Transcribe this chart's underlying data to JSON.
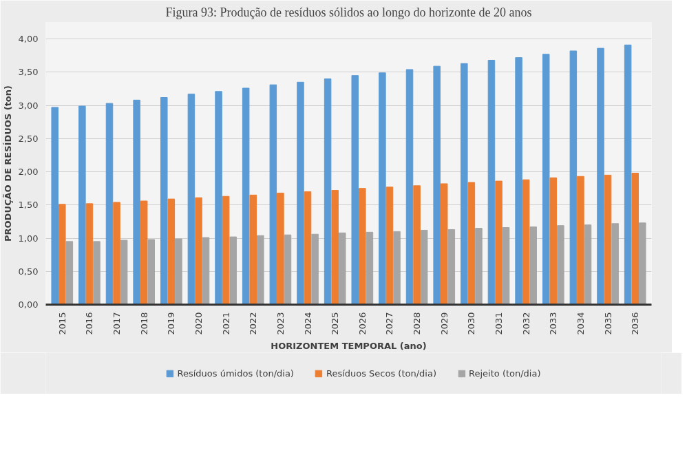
{
  "chart_data": {
    "type": "bar",
    "title": "Figura 93: Produção de resíduos sólidos ao longo do horizonte de 20 anos",
    "xlabel": "HORIZONTEM TEMPORAL (ano)",
    "ylabel": "PRODUÇÃO DE RESÍDUOS (ton)",
    "categories": [
      "2015",
      "2016",
      "2017",
      "2018",
      "2019",
      "2020",
      "2021",
      "2022",
      "2023",
      "2024",
      "2025",
      "2026",
      "2027",
      "2028",
      "2029",
      "2030",
      "2031",
      "2032",
      "2033",
      "2034",
      "2035",
      "2036"
    ],
    "series": [
      {
        "name": "Resíduos úmidos (ton/dia)",
        "color": "#5b9bd5",
        "values": [
          2.97,
          2.99,
          3.03,
          3.08,
          3.12,
          3.17,
          3.21,
          3.26,
          3.31,
          3.35,
          3.4,
          3.45,
          3.49,
          3.54,
          3.59,
          3.63,
          3.68,
          3.72,
          3.77,
          3.82,
          3.86,
          3.91
        ]
      },
      {
        "name": "Resíduos Secos (ton/dia)",
        "color": "#ed7d31",
        "values": [
          1.51,
          1.52,
          1.54,
          1.56,
          1.59,
          1.61,
          1.63,
          1.65,
          1.68,
          1.7,
          1.72,
          1.75,
          1.77,
          1.79,
          1.82,
          1.84,
          1.86,
          1.88,
          1.91,
          1.93,
          1.95,
          1.98
        ]
      },
      {
        "name": "Rejeito (ton/dia)",
        "color": "#a5a5a5",
        "values": [
          0.95,
          0.95,
          0.97,
          0.98,
          0.99,
          1.01,
          1.02,
          1.04,
          1.05,
          1.06,
          1.08,
          1.09,
          1.1,
          1.12,
          1.13,
          1.15,
          1.16,
          1.17,
          1.19,
          1.2,
          1.22,
          1.23
        ]
      }
    ],
    "ylim": [
      0,
      4.25
    ],
    "yticks": [
      {
        "value": 0,
        "label": "0,00"
      },
      {
        "value": 0.5,
        "label": "0,50"
      },
      {
        "value": 1,
        "label": "1,00"
      },
      {
        "value": 1.5,
        "label": "1,50"
      },
      {
        "value": 2,
        "label": "2,00"
      },
      {
        "value": 2.5,
        "label": "2,50"
      },
      {
        "value": 3,
        "label": "3,00"
      },
      {
        "value": 3.5,
        "label": "3,50"
      },
      {
        "value": 4,
        "label": "4,00"
      }
    ],
    "grid": "y",
    "legend": "bottom"
  }
}
